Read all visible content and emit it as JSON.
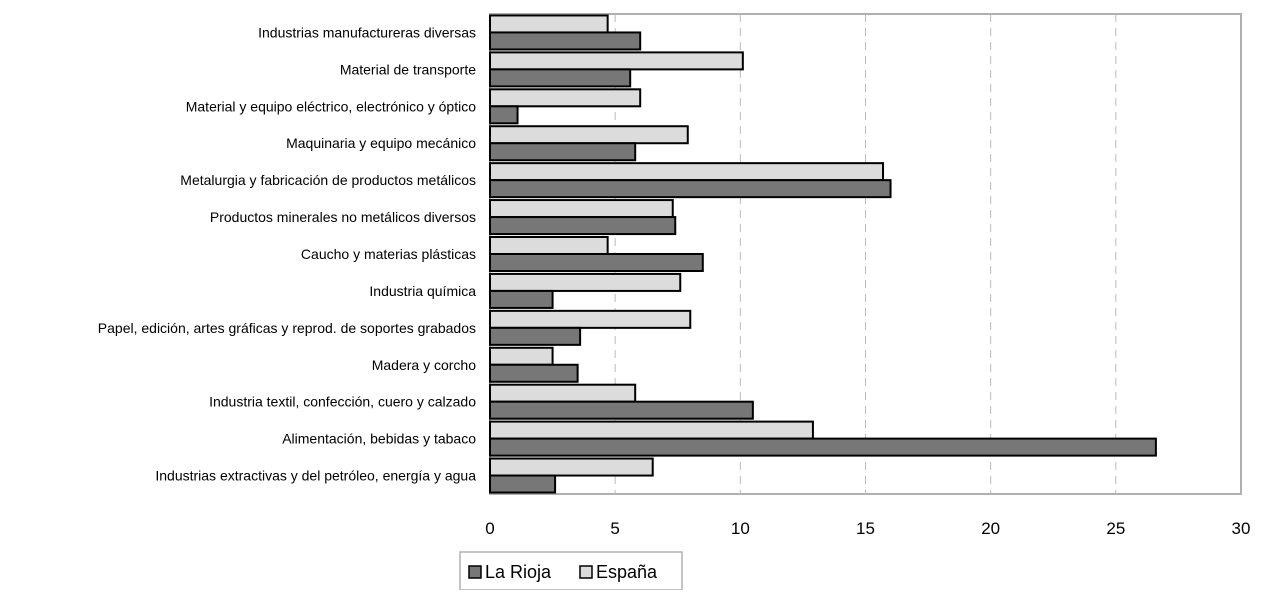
{
  "chart_data": {
    "type": "bar",
    "orientation": "horizontal",
    "categories": [
      "Industrias manufactureras diversas",
      "Material de transporte",
      "Material y equipo eléctrico, electrónico y óptico",
      "Maquinaria y equipo mecánico",
      "Metalurgia y fabricación de productos metálicos",
      "Productos minerales no metálicos diversos",
      "Caucho y materias plásticas",
      "Industria química",
      "Papel, edición, artes gráficas y reprod. de soportes grabados",
      "Madera y corcho",
      "Industria textil, confección, cuero y calzado",
      "Alimentación, bebidas y tabaco",
      "Industrias extractivas y del petróleo, energía y agua"
    ],
    "series": [
      {
        "name": "España",
        "color": "#dcdcdc",
        "values": [
          4.7,
          10.1,
          6.0,
          7.9,
          15.7,
          7.3,
          4.7,
          7.6,
          8.0,
          2.5,
          5.8,
          12.9,
          6.5
        ]
      },
      {
        "name": "La Rioja",
        "color": "#777777",
        "values": [
          6.0,
          5.6,
          1.1,
          5.8,
          16.0,
          7.4,
          8.5,
          2.5,
          3.6,
          3.5,
          10.5,
          26.6,
          2.6
        ]
      }
    ],
    "xlim": [
      0,
      30
    ],
    "xticks": [
      0,
      5,
      10,
      15,
      20,
      25,
      30
    ],
    "tick_labels": [
      "0",
      "5",
      "10",
      "15",
      "20",
      "25",
      "30"
    ],
    "grid": "vertical dashed",
    "legend_position": "bottom",
    "legend": [
      "La Rioja",
      "España"
    ],
    "title": "",
    "xlabel": "",
    "ylabel": ""
  }
}
